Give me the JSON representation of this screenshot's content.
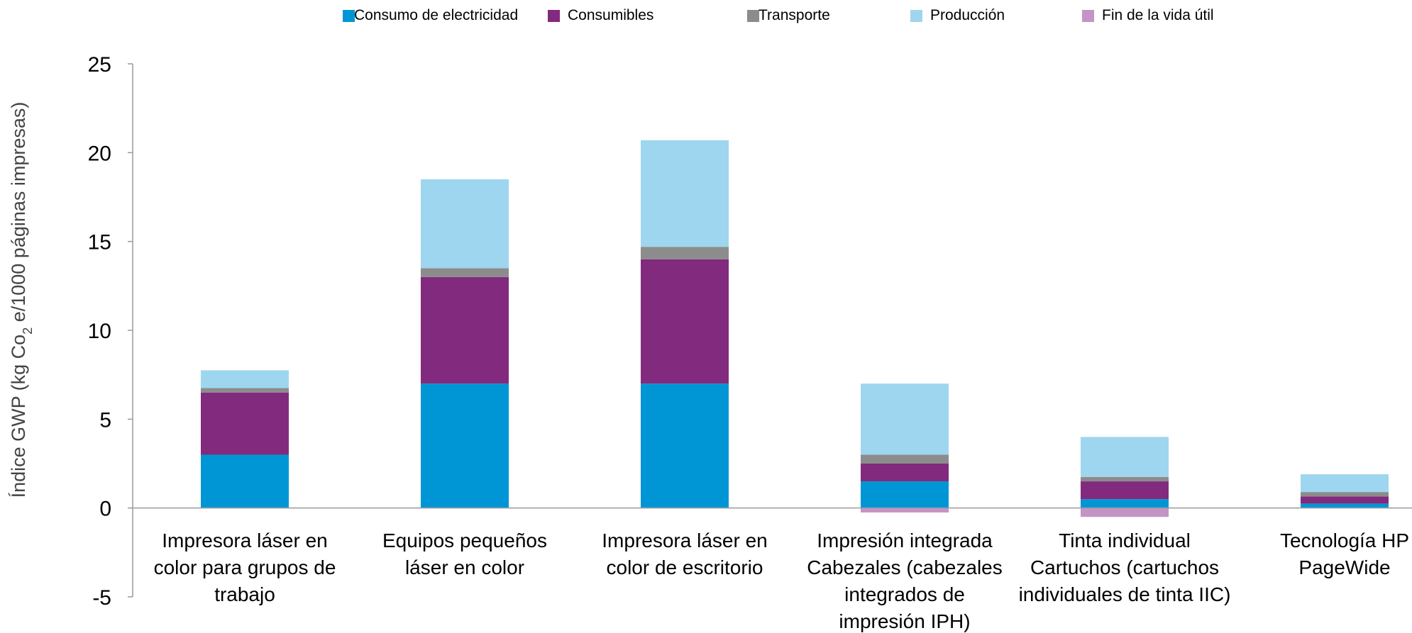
{
  "chart_data": {
    "type": "bar",
    "stacked": true,
    "ylabel": "Índice GWP (kg Co2 e/1000 páginas impresas)",
    "ylabel_parts": {
      "before": "Índice GWP (kg Co",
      "subscript": "2",
      "after": " e/1000 páginas impresas)"
    },
    "ylim": [
      -5,
      25
    ],
    "yticks": [
      -5,
      0,
      5,
      10,
      15,
      20,
      25
    ],
    "legend_position": "top",
    "categories": [
      [
        "Impresora láser en",
        "color para grupos de",
        "trabajo"
      ],
      [
        "Equipos pequeños",
        "láser en color"
      ],
      [
        "Impresora láser en",
        "color de escritorio"
      ],
      [
        "Impresión integrada",
        "Cabezales (cabezales",
        "integrados de",
        "impresión IPH)"
      ],
      [
        "Tinta individual",
        "Cartuchos (cartuchos",
        "individuales de tinta IIC)"
      ],
      [
        "Tecnología HP",
        "PageWide"
      ]
    ],
    "series": [
      {
        "name": "Consumo de electricidad",
        "color": "#0096d6",
        "values": [
          3.0,
          7.0,
          7.0,
          1.5,
          0.5,
          0.25
        ]
      },
      {
        "name": "Consumibles",
        "color": "#822a7d",
        "values": [
          3.5,
          6.0,
          7.0,
          1.0,
          1.0,
          0.4
        ]
      },
      {
        "name": "Transporte",
        "color": "#8c8c8c",
        "values": [
          0.25,
          0.5,
          0.7,
          0.5,
          0.25,
          0.25
        ]
      },
      {
        "name": "Producción",
        "color": "#9ed6ef",
        "values": [
          1.0,
          5.0,
          6.0,
          4.0,
          2.25,
          1.0
        ]
      },
      {
        "name": "Fin de la vida útil",
        "color": "#c394c5",
        "values": [
          0,
          0,
          0,
          -0.25,
          -0.5,
          0
        ]
      }
    ]
  }
}
